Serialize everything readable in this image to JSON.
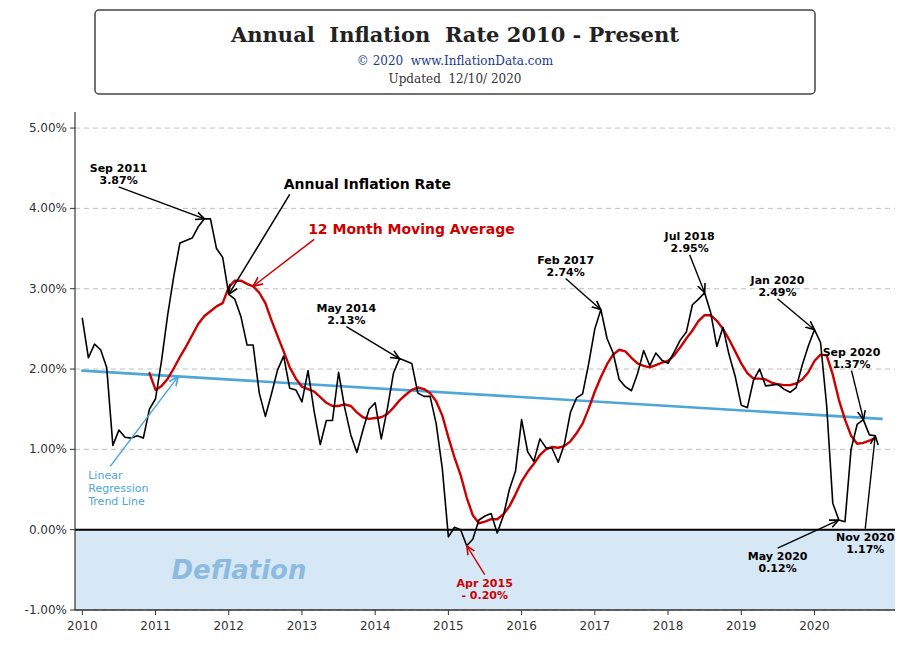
{
  "chart_data": {
    "type": "line",
    "title": "Annual  Inflation  Rate 2010 - Present",
    "subtitle": [
      "© 2020  www.InflationData.com",
      "Updated  12/10/ 2020"
    ],
    "x": [
      2010.0,
      2010.083,
      2010.167,
      2010.25,
      2010.333,
      2010.417,
      2010.5,
      2010.583,
      2010.667,
      2010.75,
      2010.833,
      2010.917,
      2011.0,
      2011.083,
      2011.167,
      2011.25,
      2011.333,
      2011.417,
      2011.5,
      2011.583,
      2011.667,
      2011.75,
      2011.833,
      2011.917,
      2012.0,
      2012.083,
      2012.167,
      2012.25,
      2012.333,
      2012.417,
      2012.5,
      2012.583,
      2012.667,
      2012.75,
      2012.833,
      2012.917,
      2013.0,
      2013.083,
      2013.167,
      2013.25,
      2013.333,
      2013.417,
      2013.5,
      2013.583,
      2013.667,
      2013.75,
      2013.833,
      2013.917,
      2014.0,
      2014.083,
      2014.167,
      2014.25,
      2014.333,
      2014.417,
      2014.5,
      2014.583,
      2014.667,
      2014.75,
      2014.833,
      2014.917,
      2015.0,
      2015.083,
      2015.167,
      2015.25,
      2015.333,
      2015.417,
      2015.5,
      2015.583,
      2015.667,
      2015.75,
      2015.833,
      2015.917,
      2016.0,
      2016.083,
      2016.167,
      2016.25,
      2016.333,
      2016.417,
      2016.5,
      2016.583,
      2016.667,
      2016.75,
      2016.833,
      2016.917,
      2017.0,
      2017.083,
      2017.167,
      2017.25,
      2017.333,
      2017.417,
      2017.5,
      2017.583,
      2017.667,
      2017.75,
      2017.833,
      2017.917,
      2018.0,
      2018.083,
      2018.167,
      2018.25,
      2018.333,
      2018.417,
      2018.5,
      2018.583,
      2018.667,
      2018.75,
      2018.833,
      2018.917,
      2019.0,
      2019.083,
      2019.167,
      2019.25,
      2019.333,
      2019.417,
      2019.5,
      2019.583,
      2019.667,
      2019.75,
      2019.833,
      2019.917,
      2020.0,
      2020.083,
      2020.167,
      2020.25,
      2020.333,
      2020.417,
      2020.5,
      2020.583,
      2020.667,
      2020.75,
      2020.833
    ],
    "series": [
      {
        "name": "Annual Inflation Rate",
        "color": "#000000",
        "values": [
          2.63,
          2.14,
          2.31,
          2.24,
          2.02,
          1.05,
          1.24,
          1.15,
          1.14,
          1.17,
          1.14,
          1.5,
          1.63,
          2.11,
          2.68,
          3.16,
          3.57,
          3.6,
          3.63,
          3.77,
          3.87,
          3.87,
          3.5,
          3.39,
          2.93,
          2.87,
          2.65,
          2.3,
          2.3,
          1.7,
          1.41,
          1.69,
          1.99,
          2.16,
          1.76,
          1.74,
          1.59,
          1.98,
          1.47,
          1.06,
          1.36,
          1.36,
          1.96,
          1.52,
          1.18,
          0.96,
          1.24,
          1.5,
          1.58,
          1.13,
          1.51,
          1.95,
          2.13,
          2.1,
          2.07,
          1.7,
          1.66,
          1.66,
          1.32,
          0.76,
          -0.09,
          0.03,
          0.0,
          -0.2,
          -0.12,
          0.12,
          0.17,
          0.2,
          -0.04,
          0.17,
          0.5,
          0.73,
          1.37,
          0.97,
          0.85,
          1.13,
          1.02,
          1.01,
          0.84,
          1.06,
          1.46,
          1.64,
          1.69,
          2.07,
          2.5,
          2.74,
          2.38,
          2.2,
          1.87,
          1.78,
          1.73,
          1.94,
          2.23,
          2.04,
          2.2,
          2.11,
          2.07,
          2.21,
          2.36,
          2.46,
          2.8,
          2.87,
          2.95,
          2.7,
          2.28,
          2.52,
          2.18,
          1.91,
          1.55,
          1.52,
          1.86,
          2.0,
          1.79,
          1.8,
          1.81,
          1.75,
          1.71,
          1.77,
          2.05,
          2.29,
          2.49,
          2.33,
          1.54,
          0.33,
          0.12,
          0.1,
          1.0,
          1.31,
          1.37,
          1.18,
          1.17
        ]
      },
      {
        "name": "12 Month Moving Average",
        "color": "#cc0000",
        "values": [
          null,
          null,
          null,
          null,
          null,
          null,
          null,
          null,
          null,
          null,
          null,
          1.95,
          1.74,
          1.79,
          1.88,
          2.01,
          2.15,
          2.28,
          2.42,
          2.56,
          2.66,
          2.72,
          2.78,
          2.82,
          3.02,
          3.1,
          3.1,
          3.06,
          3.03,
          2.95,
          2.82,
          2.61,
          2.41,
          2.22,
          2.02,
          1.88,
          1.78,
          1.75,
          1.72,
          1.65,
          1.58,
          1.54,
          1.54,
          1.56,
          1.54,
          1.46,
          1.4,
          1.38,
          1.39,
          1.4,
          1.44,
          1.52,
          1.61,
          1.68,
          1.74,
          1.77,
          1.75,
          1.7,
          1.6,
          1.42,
          1.15,
          0.9,
          0.68,
          0.4,
          0.18,
          0.08,
          0.1,
          0.13,
          0.13,
          0.19,
          0.29,
          0.44,
          0.6,
          0.72,
          0.82,
          0.93,
          1.0,
          1.03,
          1.02,
          1.04,
          1.1,
          1.2,
          1.32,
          1.51,
          1.72,
          1.9,
          2.06,
          2.18,
          2.24,
          2.22,
          2.14,
          2.07,
          2.04,
          2.02,
          2.05,
          2.08,
          2.1,
          2.17,
          2.27,
          2.38,
          2.48,
          2.6,
          2.67,
          2.67,
          2.6,
          2.5,
          2.37,
          2.22,
          2.07,
          1.95,
          1.88,
          1.88,
          1.87,
          1.83,
          1.81,
          1.8,
          1.8,
          1.82,
          1.87,
          1.96,
          2.1,
          2.18,
          2.17,
          1.93,
          1.62,
          1.37,
          1.17,
          1.07,
          1.08,
          1.11,
          1.14
        ]
      },
      {
        "name": "Linear\nRegression\nTrend Line",
        "color": "#4da6d9",
        "x": [
          2010.0,
          2020.917
        ],
        "values": [
          1.98,
          1.38
        ]
      }
    ],
    "xlim": [
      2009.9,
      2021.1
    ],
    "xticks": [
      2010,
      2011,
      2012,
      2013,
      2014,
      2015,
      2016,
      2017,
      2018,
      2019,
      2020
    ],
    "ylim": [
      -1.0,
      5.2
    ],
    "yticks": [
      {
        "value": -1.0,
        "label": "-1.00%"
      },
      {
        "value": 0.0,
        "label": "0.00%"
      },
      {
        "value": 1.0,
        "label": "1.00%"
      },
      {
        "value": 2.0,
        "label": "2.00%"
      },
      {
        "value": 3.0,
        "label": "3.00%"
      },
      {
        "value": 4.0,
        "label": "4.00%"
      },
      {
        "value": 5.0,
        "label": "5.00%"
      }
    ],
    "grid": true,
    "annotations": [
      {
        "text": "Sep 2011\n3.87%",
        "x": 2011.67,
        "y": 3.87,
        "color": "#000000"
      },
      {
        "text": "May 2014\n2.13%",
        "x": 2014.33,
        "y": 2.13,
        "color": "#000000"
      },
      {
        "text": "Jul 2018\n2.95%",
        "x": 2018.5,
        "y": 2.95,
        "color": "#000000"
      },
      {
        "text": "Feb 2017\n2.74%",
        "x": 2017.08,
        "y": 2.74,
        "color": "#000000"
      },
      {
        "text": "Jan 2020\n2.49%",
        "x": 2020.0,
        "y": 2.49,
        "color": "#000000"
      },
      {
        "text": "Sep 2020\n1.37%",
        "x": 2020.67,
        "y": 1.37,
        "color": "#000000"
      },
      {
        "text": "Nov 2020\n1.17%",
        "x": 2020.83,
        "y": 1.17,
        "color": "#000000"
      },
      {
        "text": "May 2020\n0.12%",
        "x": 2020.33,
        "y": 0.12,
        "color": "#000000"
      },
      {
        "text": "Apr 2015\n- 0.20%",
        "x": 2015.25,
        "y": -0.2,
        "color": "#cc0000"
      },
      {
        "text": "Deflation",
        "ylim": [
          -1.0,
          0.0
        ],
        "color": "#d6e8f5"
      }
    ]
  }
}
